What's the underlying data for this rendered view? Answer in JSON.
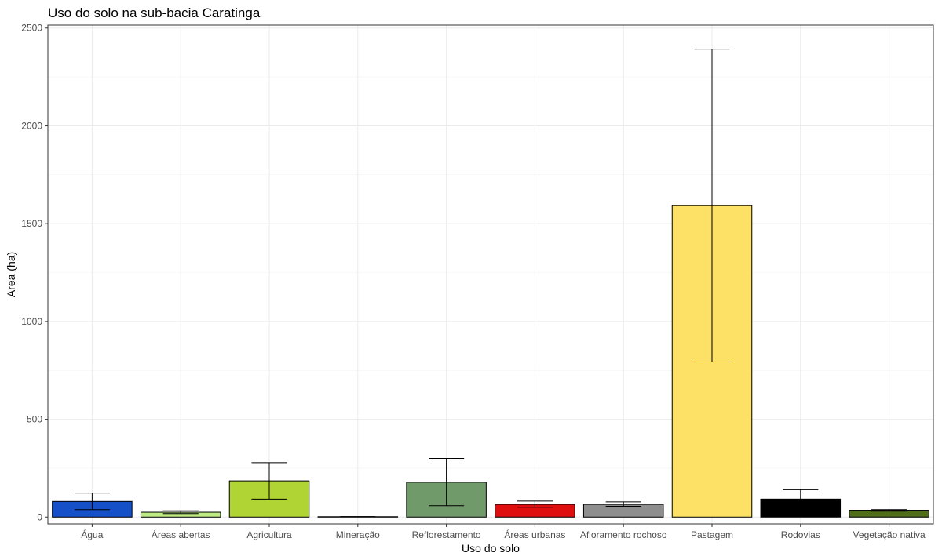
{
  "chart_data": {
    "type": "bar",
    "title": "Uso do solo na sub-bacia Caratinga",
    "xlabel": "Uso do solo",
    "ylabel": "Area (ha)",
    "ylim": [
      -35,
      2515
    ],
    "yticks": [
      0,
      500,
      1000,
      1500,
      2000,
      2500
    ],
    "grid": true,
    "categories": [
      "Água",
      "Áreas abertas",
      "Agricultura",
      "Mineração",
      "Reflorestamento",
      "Áreas urbanas",
      "Afloramento rochoso",
      "Pastagem",
      "Rodovias",
      "Vegetação nativa"
    ],
    "values": [
      80,
      25,
      185,
      2,
      178,
      65,
      65,
      1592,
      92,
      35
    ],
    "error_low": [
      38,
      18,
      92,
      2,
      58,
      50,
      55,
      793,
      88,
      30
    ],
    "error_high": [
      123,
      32,
      278,
      2,
      300,
      82,
      78,
      2392,
      140,
      38
    ],
    "colors": [
      "#1550C8",
      "#BDEB84",
      "#B0D433",
      "#FFFFFF",
      "#709A6A",
      "#E00F0F",
      "#8E8E8E",
      "#FDE166",
      "#000000",
      "#4F6E17"
    ]
  }
}
